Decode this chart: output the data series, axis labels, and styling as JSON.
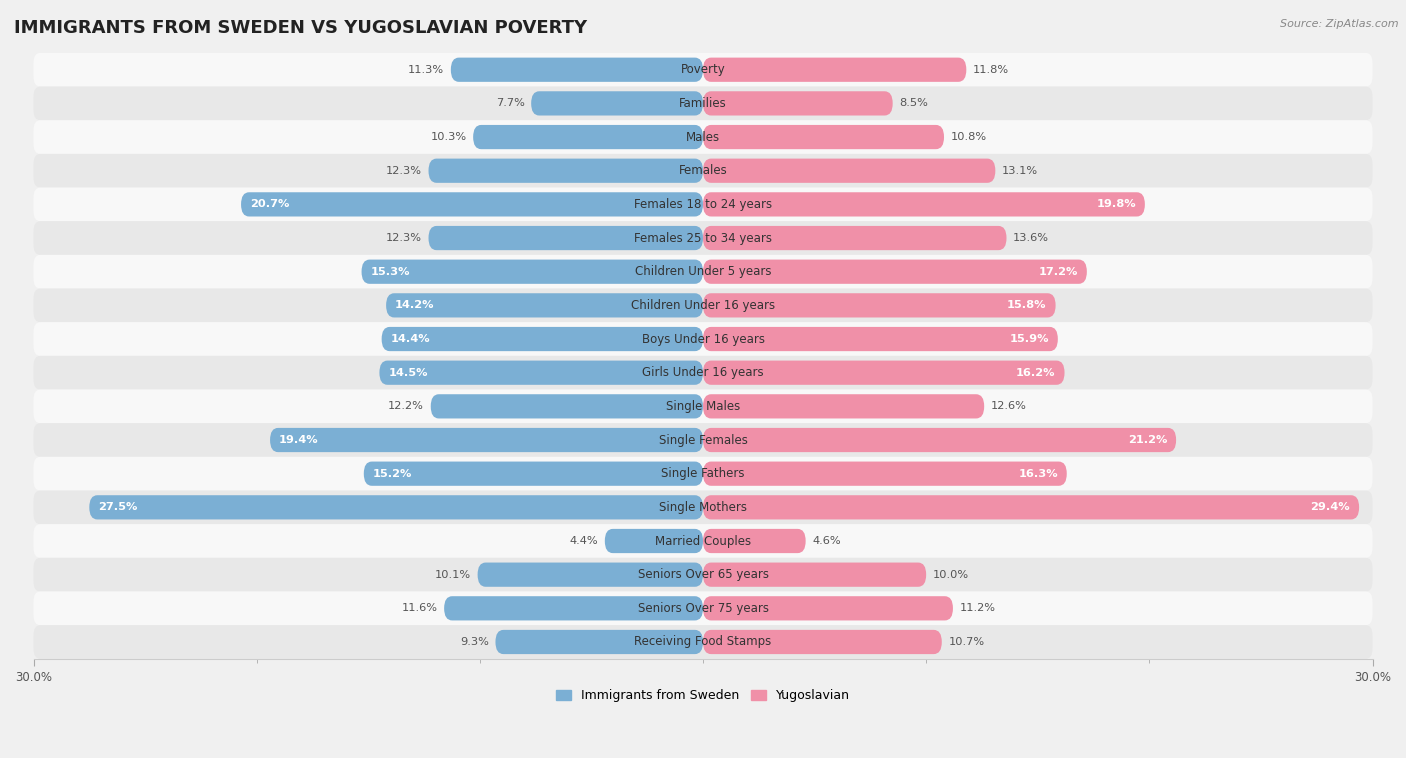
{
  "title": "IMMIGRANTS FROM SWEDEN VS YUGOSLAVIAN POVERTY",
  "source": "Source: ZipAtlas.com",
  "categories": [
    "Poverty",
    "Families",
    "Males",
    "Females",
    "Females 18 to 24 years",
    "Females 25 to 34 years",
    "Children Under 5 years",
    "Children Under 16 years",
    "Boys Under 16 years",
    "Girls Under 16 years",
    "Single Males",
    "Single Females",
    "Single Fathers",
    "Single Mothers",
    "Married Couples",
    "Seniors Over 65 years",
    "Seniors Over 75 years",
    "Receiving Food Stamps"
  ],
  "sweden_values": [
    11.3,
    7.7,
    10.3,
    12.3,
    20.7,
    12.3,
    15.3,
    14.2,
    14.4,
    14.5,
    12.2,
    19.4,
    15.2,
    27.5,
    4.4,
    10.1,
    11.6,
    9.3
  ],
  "yugoslav_values": [
    11.8,
    8.5,
    10.8,
    13.1,
    19.8,
    13.6,
    17.2,
    15.8,
    15.9,
    16.2,
    12.6,
    21.2,
    16.3,
    29.4,
    4.6,
    10.0,
    11.2,
    10.7
  ],
  "sweden_color": "#7bafd4",
  "yugoslav_color": "#f090a8",
  "sweden_label": "Immigrants from Sweden",
  "yugoslav_label": "Yugoslavian",
  "axis_max": 30.0,
  "background_color": "#f0f0f0",
  "row_bg_light": "#f8f8f8",
  "row_bg_dark": "#e8e8e8",
  "bar_height": 0.72,
  "title_fontsize": 13,
  "label_fontsize": 8.5,
  "value_fontsize": 8.2,
  "inside_threshold": 14.0
}
